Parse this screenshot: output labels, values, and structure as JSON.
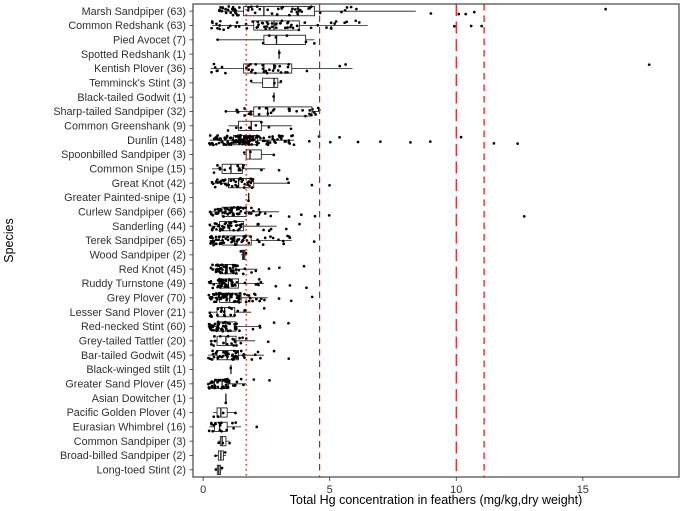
{
  "figure": {
    "background": "#ffffff",
    "panel_border_color": "#333333",
    "axis_text_color": "#303030"
  },
  "chart_data": {
    "type": "boxplot",
    "orientation": "horizontal",
    "title": "",
    "xlabel": "Total Hg concentration in feathers (mg/kg,dry weight)",
    "ylabel": "Species",
    "xlim": [
      -0.4,
      18.8
    ],
    "x_ticks": [
      0,
      5,
      10,
      15
    ],
    "grid": false,
    "legend": "none",
    "point_color": "#000000",
    "box_color": "#1a1a1a",
    "reference_lines": [
      {
        "x": 1.7,
        "style": "dotted",
        "color": "#ff0000"
      },
      {
        "x": 4.6,
        "style": "dashed",
        "color": "#ff0000"
      },
      {
        "x": 10.0,
        "style": "longdash",
        "color": "#ff0000"
      },
      {
        "x": 11.1,
        "style": "dashed",
        "color": "#ff0000"
      }
    ],
    "species": [
      {
        "label": "Marsh Sandpiper (63)",
        "n": 63,
        "lo": 0.6,
        "q1": 1.6,
        "med": 2.4,
        "q3": 4.4,
        "hi": 8.4,
        "outliers": [
          9.0,
          10.1,
          10.4,
          10.7,
          15.9
        ]
      },
      {
        "label": "Common Redshank (63)",
        "n": 63,
        "lo": 0.35,
        "q1": 2.0,
        "med": 2.8,
        "q3": 3.8,
        "hi": 6.5,
        "outliers": [
          9.9,
          10.6,
          11.0
        ]
      },
      {
        "label": "Pied Avocet (7)",
        "n": 7,
        "lo": 0.55,
        "q1": 2.4,
        "med": 2.9,
        "q3": 4.05,
        "hi": 4.4,
        "outliers": [],
        "points": [
          0.55,
          2.4,
          2.6,
          2.9,
          3.3,
          4.05,
          4.4
        ]
      },
      {
        "label": "Spotted Redshank (1)",
        "n": 1,
        "lo": 3.0,
        "q1": 3.0,
        "med": 3.0,
        "q3": 3.0,
        "hi": 3.0,
        "outliers": [],
        "points": [
          3.0
        ]
      },
      {
        "label": "Kentish Plover (36)",
        "n": 36,
        "lo": 0.3,
        "q1": 1.6,
        "med": 2.4,
        "q3": 3.5,
        "hi": 5.9,
        "outliers": [
          17.6
        ]
      },
      {
        "label": "Temminck's Stint (3)",
        "n": 3,
        "lo": 1.9,
        "q1": 2.35,
        "med": 2.8,
        "q3": 2.95,
        "hi": 3.1,
        "outliers": [],
        "points": [
          1.9,
          2.8,
          3.1
        ]
      },
      {
        "label": "Black-tailed Godwit (1)",
        "n": 1,
        "lo": 2.8,
        "q1": 2.8,
        "med": 2.8,
        "q3": 2.8,
        "hi": 2.8,
        "outliers": [],
        "points": [
          2.8
        ]
      },
      {
        "label": "Sharp-tailed Sandpiper (32)",
        "n": 32,
        "lo": 0.85,
        "q1": 2.0,
        "med": 2.55,
        "q3": 4.3,
        "hi": 4.6,
        "outliers": []
      },
      {
        "label": "Common Greenshank (9)",
        "n": 9,
        "lo": 1.0,
        "q1": 1.4,
        "med": 1.9,
        "q3": 2.3,
        "hi": 3.5,
        "outliers": [],
        "points": [
          1.0,
          1.3,
          1.5,
          1.8,
          1.9,
          2.1,
          2.3,
          2.6,
          3.5
        ]
      },
      {
        "label": "Dunlin (148)",
        "n": 148,
        "lo": 0.25,
        "q1": 1.2,
        "med": 1.6,
        "q3": 2.15,
        "hi": 3.6,
        "outliers": [
          4.2,
          4.6,
          5.0,
          5.4,
          6.1,
          7.0,
          8.2,
          9.0,
          10.2,
          11.5,
          12.4
        ]
      },
      {
        "label": "Spoonbilled Sandpiper (3)",
        "n": 3,
        "lo": 1.6,
        "q1": 1.7,
        "med": 1.85,
        "q3": 2.3,
        "hi": 2.8,
        "outliers": [],
        "points": [
          1.6,
          1.85,
          2.8
        ]
      },
      {
        "label": "Common Snipe (15)",
        "n": 15,
        "lo": 0.35,
        "q1": 0.75,
        "med": 1.1,
        "q3": 1.55,
        "hi": 2.45,
        "outliers": [
          3.0
        ]
      },
      {
        "label": "Great Knot (42)",
        "n": 42,
        "lo": 0.3,
        "q1": 1.0,
        "med": 1.4,
        "q3": 2.0,
        "hi": 3.4,
        "outliers": [
          4.3,
          5.0
        ]
      },
      {
        "label": "Greater Painted-snipe (1)",
        "n": 1,
        "lo": 1.8,
        "q1": 1.8,
        "med": 1.8,
        "q3": 1.8,
        "hi": 1.8,
        "outliers": [],
        "points": [
          1.8
        ]
      },
      {
        "label": "Curlew Sandpiper (66)",
        "n": 66,
        "lo": 0.25,
        "q1": 0.75,
        "med": 1.15,
        "q3": 1.7,
        "hi": 3.0,
        "outliers": [
          3.4,
          3.9,
          4.4,
          5.0,
          12.7
        ]
      },
      {
        "label": "Sanderling (44)",
        "n": 44,
        "lo": 0.25,
        "q1": 0.65,
        "med": 1.05,
        "q3": 1.6,
        "hi": 2.9,
        "outliers": [
          3.3,
          3.8
        ]
      },
      {
        "label": "Terek Sandpiper (65)",
        "n": 65,
        "lo": 0.25,
        "q1": 0.75,
        "med": 1.25,
        "q3": 1.9,
        "hi": 3.5,
        "outliers": [
          4.4
        ]
      },
      {
        "label": "Wood Sandpiper (2)",
        "n": 2,
        "lo": 1.5,
        "q1": 1.55,
        "med": 1.6,
        "q3": 1.65,
        "hi": 1.7,
        "outliers": [],
        "points": [
          1.5,
          1.7
        ]
      },
      {
        "label": "Red Knot (45)",
        "n": 45,
        "lo": 0.3,
        "q1": 0.65,
        "med": 0.95,
        "q3": 1.3,
        "hi": 2.15,
        "outliers": [
          2.6,
          3.0,
          4.0
        ]
      },
      {
        "label": "Ruddy Turnstone (49)",
        "n": 49,
        "lo": 0.25,
        "q1": 0.65,
        "med": 1.0,
        "q3": 1.4,
        "hi": 2.4,
        "outliers": [
          2.9,
          3.4,
          4.1
        ]
      },
      {
        "label": "Grey Plover (70)",
        "n": 70,
        "lo": 0.2,
        "q1": 0.65,
        "med": 1.05,
        "q3": 1.5,
        "hi": 2.55,
        "outliers": [
          3.0,
          3.5,
          4.3
        ]
      },
      {
        "label": "Lesser Sand Plover (21)",
        "n": 21,
        "lo": 0.25,
        "q1": 0.55,
        "med": 0.85,
        "q3": 1.25,
        "hi": 1.9,
        "outliers": [
          2.4
        ]
      },
      {
        "label": "Red-necked Stint (60)",
        "n": 60,
        "lo": 0.2,
        "q1": 0.55,
        "med": 0.9,
        "q3": 1.3,
        "hi": 2.25,
        "outliers": [
          2.8,
          3.4
        ]
      },
      {
        "label": "Grey-tailed Tattler (20)",
        "n": 20,
        "lo": 0.3,
        "q1": 0.55,
        "med": 0.9,
        "q3": 1.3,
        "hi": 2.05,
        "outliers": [
          2.6
        ]
      },
      {
        "label": "Bar-tailed Godwit (45)",
        "n": 45,
        "lo": 0.2,
        "q1": 0.55,
        "med": 0.95,
        "q3": 1.4,
        "hi": 2.4,
        "outliers": [
          2.8,
          3.4
        ]
      },
      {
        "label": "Black-winged stilt (1)",
        "n": 1,
        "lo": 1.1,
        "q1": 1.1,
        "med": 1.1,
        "q3": 1.1,
        "hi": 1.1,
        "outliers": [],
        "points": [
          1.1
        ]
      },
      {
        "label": "Greater Sand Plover (45)",
        "n": 45,
        "lo": 0.2,
        "q1": 0.45,
        "med": 0.75,
        "q3": 1.0,
        "hi": 1.7,
        "outliers": [
          2.0,
          2.6
        ]
      },
      {
        "label": "Asian Dowitcher (1)",
        "n": 1,
        "lo": 0.9,
        "q1": 0.9,
        "med": 0.9,
        "q3": 0.9,
        "hi": 0.9,
        "outliers": [],
        "points": [
          0.9
        ]
      },
      {
        "label": "Pacific Golden Plover (4)",
        "n": 4,
        "lo": 0.4,
        "q1": 0.55,
        "med": 0.7,
        "q3": 0.95,
        "hi": 1.3,
        "outliers": [],
        "points": [
          0.4,
          0.6,
          0.8,
          1.3
        ]
      },
      {
        "label": "Eurasian Whimbrel (16)",
        "n": 16,
        "lo": 0.25,
        "q1": 0.45,
        "med": 0.65,
        "q3": 0.95,
        "hi": 1.5,
        "outliers": [
          2.1
        ]
      },
      {
        "label": "Common Sandpiper (3)",
        "n": 3,
        "lo": 0.6,
        "q1": 0.68,
        "med": 0.75,
        "q3": 0.9,
        "hi": 1.05,
        "outliers": [],
        "points": [
          0.6,
          0.75,
          1.05
        ]
      },
      {
        "label": "Broad-billed Sandpiper (2)",
        "n": 2,
        "lo": 0.5,
        "q1": 0.6,
        "med": 0.7,
        "q3": 0.8,
        "hi": 0.9,
        "outliers": [],
        "points": [
          0.5,
          0.9
        ]
      },
      {
        "label": "Long-toed Stint (2)",
        "n": 2,
        "lo": 0.5,
        "q1": 0.56,
        "med": 0.62,
        "q3": 0.69,
        "hi": 0.75,
        "outliers": [],
        "points": [
          0.5,
          0.75
        ]
      }
    ]
  }
}
